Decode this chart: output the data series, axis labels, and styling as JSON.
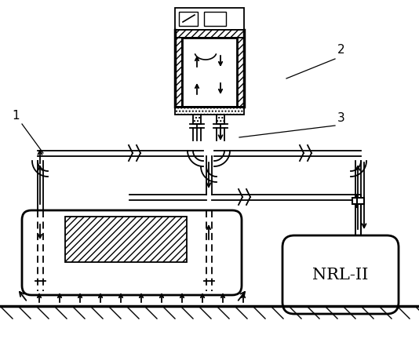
{
  "background_color": "#ffffff",
  "line_color": "#000000",
  "label_1": "1",
  "label_2": "2",
  "label_3": "3",
  "nrl_text": "NRL-II",
  "fig_width": 5.34,
  "fig_height": 4.46,
  "dpi": 100
}
